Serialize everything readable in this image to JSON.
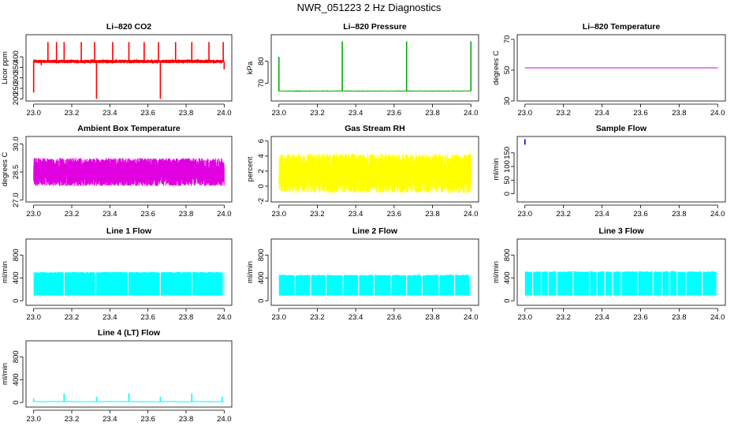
{
  "figure": {
    "title": "NWR_051223  2 Hz Diagnostics"
  },
  "chart_data": [
    {
      "id": "co2",
      "type": "line",
      "title": "Li–820 CO2",
      "ylabel": "Licor ppm",
      "xlim": [
        23.0,
        24.0
      ],
      "ylim": [
        190,
        505
      ],
      "xticks": [
        23.0,
        23.2,
        23.4,
        23.6,
        23.8,
        24.0
      ],
      "yticks": [
        200,
        250,
        300,
        350,
        400
      ],
      "color": "#ff0000",
      "series": [
        {
          "baseline": 378,
          "noise": 8,
          "density": 3000,
          "spikes": [
            {
              "x": 23.0,
              "y": 230
            },
            {
              "x": 23.04,
              "y": 360
            },
            {
              "x": 23.075,
              "y": 470
            },
            {
              "x": 23.12,
              "y": 470
            },
            {
              "x": 23.16,
              "y": 470
            },
            {
              "x": 23.25,
              "y": 470
            },
            {
              "x": 23.32,
              "y": 470
            },
            {
              "x": 23.33,
              "y": 200
            },
            {
              "x": 23.415,
              "y": 470
            },
            {
              "x": 23.5,
              "y": 470
            },
            {
              "x": 23.58,
              "y": 470
            },
            {
              "x": 23.655,
              "y": 470
            },
            {
              "x": 23.665,
              "y": 200
            },
            {
              "x": 23.745,
              "y": 470
            },
            {
              "x": 23.83,
              "y": 470
            },
            {
              "x": 23.92,
              "y": 470
            },
            {
              "x": 23.995,
              "y": 470
            },
            {
              "x": 24.0,
              "y": 340
            }
          ]
        }
      ]
    },
    {
      "id": "pressure",
      "type": "line",
      "title": "Li–820 Pressure",
      "ylabel": "kPa",
      "xlim": [
        23.0,
        24.0
      ],
      "ylim": [
        62,
        92
      ],
      "xticks": [
        23.0,
        23.2,
        23.4,
        23.6,
        23.8,
        24.0
      ],
      "yticks": [
        70,
        80
      ],
      "color": "#00b000",
      "series": [
        {
          "baseline": 66.5,
          "noise": 0.15,
          "density": 400,
          "spikes": [
            {
              "x": 23.0,
              "y": 82
            },
            {
              "x": 23.33,
              "y": 89
            },
            {
              "x": 23.665,
              "y": 89
            },
            {
              "x": 24.0,
              "y": 89
            }
          ]
        }
      ]
    },
    {
      "id": "licor-temp",
      "type": "line",
      "title": "Li–820 Temperature",
      "ylabel": "degrees C",
      "xlim": [
        23.0,
        24.0
      ],
      "ylim": [
        30,
        73
      ],
      "xticks": [
        23.0,
        23.2,
        23.4,
        23.6,
        23.8,
        24.0
      ],
      "yticks": [
        30,
        50,
        70
      ],
      "color": "#d000d0",
      "series": [
        {
          "baseline": 51.5,
          "noise": 0,
          "density": 2,
          "spikes": []
        }
      ]
    },
    {
      "id": "box-temp",
      "type": "line",
      "title": "Ambient Box Temperature",
      "ylabel": "degrees C",
      "xlim": [
        23.0,
        24.0
      ],
      "ylim": [
        26.9,
        30.4
      ],
      "xticks": [
        23.0,
        23.2,
        23.4,
        23.6,
        23.8,
        24.0
      ],
      "yticks": [
        27.0,
        28.5,
        30.0
      ],
      "color": "#e000e0",
      "series": [
        {
          "baseline": 28.5,
          "noise": 0.75,
          "density": 3500,
          "spikes": []
        }
      ]
    },
    {
      "id": "rh",
      "type": "line",
      "title": "Gas Stream RH",
      "ylabel": "percent",
      "xlim": [
        23.0,
        24.0
      ],
      "ylim": [
        -2.1,
        6.6
      ],
      "xticks": [
        23.0,
        23.2,
        23.4,
        23.6,
        23.8,
        24.0
      ],
      "yticks": [
        -2,
        0,
        2,
        4,
        6
      ],
      "color": "#ffff00",
      "series": [
        {
          "baseline": 1.7,
          "noise": 2.6,
          "density": 3500,
          "spikes": []
        }
      ]
    },
    {
      "id": "sample-flow",
      "type": "line",
      "title": "Sample Flow",
      "ylabel": "ml/min",
      "xlim": [
        23.0,
        24.0
      ],
      "ylim": [
        -30,
        210
      ],
      "xticks": [
        23.0,
        23.2,
        23.4,
        23.6,
        23.8,
        24.0
      ],
      "yticks": [
        0,
        50,
        100,
        150
      ],
      "color": "#0000e0",
      "series": [
        {
          "baseline": null,
          "noise": 0,
          "density": 0,
          "spikes": [
            {
              "x": 23.0,
              "y": 180,
              "y0": 200
            }
          ]
        }
      ]
    },
    {
      "id": "line1",
      "type": "line",
      "title": "Line 1 Flow",
      "ylabel": "ml/min",
      "xlim": [
        23.0,
        24.0
      ],
      "ylim": [
        -80,
        1080
      ],
      "xticks": [
        23.0,
        23.2,
        23.4,
        23.6,
        23.8,
        24.0
      ],
      "yticks": [
        0,
        400,
        800
      ],
      "color": "#00ffff",
      "series": [
        {
          "band": [
            90,
            490
          ],
          "gaps": [
            23.16,
            23.325,
            23.495,
            23.665,
            23.83,
            23.995
          ]
        }
      ]
    },
    {
      "id": "line2",
      "type": "line",
      "title": "Line 2 Flow",
      "ylabel": "ml/min",
      "xlim": [
        23.0,
        24.0
      ],
      "ylim": [
        -80,
        1080
      ],
      "xticks": [
        23.0,
        23.2,
        23.4,
        23.6,
        23.8,
        24.0
      ],
      "yticks": [
        0,
        400,
        800
      ],
      "color": "#00ffff",
      "series": [
        {
          "band": [
            90,
            440
          ],
          "gaps": [
            23.085,
            23.165,
            23.245,
            23.335,
            23.415,
            23.495,
            23.585,
            23.665,
            23.745,
            23.835,
            23.915,
            23.995
          ]
        }
      ]
    },
    {
      "id": "line3",
      "type": "line",
      "title": "Line 3 Flow",
      "ylabel": "ml/min",
      "xlim": [
        23.0,
        24.0
      ],
      "ylim": [
        -80,
        1080
      ],
      "xticks": [
        23.0,
        23.2,
        23.4,
        23.6,
        23.8,
        24.0
      ],
      "yticks": [
        0,
        400,
        800
      ],
      "color": "#00ffff",
      "series": [
        {
          "band": [
            90,
            500
          ],
          "gaps": [
            23.04,
            23.085,
            23.12,
            23.165,
            23.25,
            23.335,
            23.375,
            23.415,
            23.455,
            23.5,
            23.585,
            23.665,
            23.71,
            23.75,
            23.79,
            23.835,
            23.92,
            23.995
          ]
        }
      ]
    },
    {
      "id": "line4",
      "type": "line",
      "title": "Line 4 (LT) Flow",
      "ylabel": "ml/min",
      "xlim": [
        23.0,
        24.0
      ],
      "ylim": [
        -80,
        1080
      ],
      "xticks": [
        23.0,
        23.2,
        23.4,
        23.6,
        23.8,
        24.0
      ],
      "yticks": [
        0,
        400,
        800
      ],
      "color": "#00ffff",
      "series": [
        {
          "baseline": 15,
          "noise": 3,
          "density": 300,
          "spikes": [
            {
              "x": 23.0,
              "y": 70
            },
            {
              "x": 23.16,
              "y": 160
            },
            {
              "x": 23.33,
              "y": 100
            },
            {
              "x": 23.5,
              "y": 160
            },
            {
              "x": 23.665,
              "y": 100
            },
            {
              "x": 23.83,
              "y": 160
            },
            {
              "x": 23.99,
              "y": 100
            }
          ]
        }
      ]
    }
  ]
}
